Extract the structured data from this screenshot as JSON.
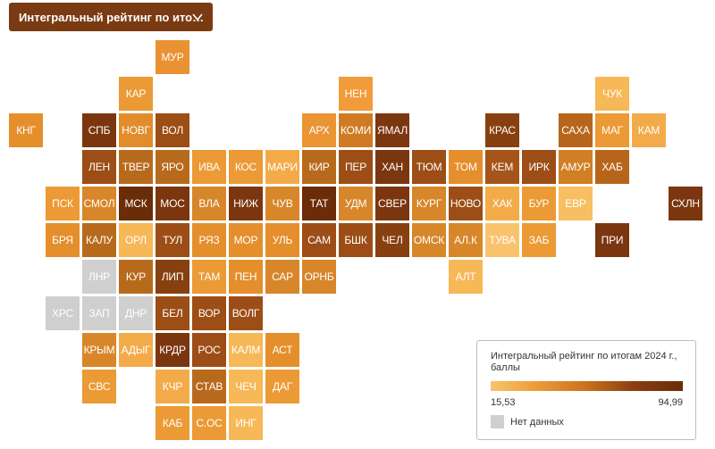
{
  "dropdown": {
    "label": "Интегральный рейтинг по ито…"
  },
  "colors": {
    "dark": "#7a3b12",
    "no_data": "#cfcfcf",
    "scale_min": "#f9c36e",
    "scale_max": "#6b2c08"
  },
  "legend": {
    "title": "Интегральный рейтинг по итогам 2024 г., баллы",
    "min": "15,53",
    "max": "94,99",
    "no_data_label": "Нет данных"
  },
  "regions": [
    {
      "label": "МУР",
      "row": 0,
      "col": 4,
      "color": "#ea9133"
    },
    {
      "label": "КАР",
      "row": 1,
      "col": 3,
      "color": "#eb9a35"
    },
    {
      "label": "НЕН",
      "row": 1,
      "col": 9,
      "color": "#f29b3a"
    },
    {
      "label": "ЧУК",
      "row": 1,
      "col": 16,
      "color": "#f7b858"
    },
    {
      "label": "КНГ",
      "row": 2,
      "col": 0,
      "color": "#e48f2c"
    },
    {
      "label": "СПБ",
      "row": 2,
      "col": 2,
      "color": "#7b3610"
    },
    {
      "label": "НОВГ",
      "row": 2,
      "col": 3,
      "color": "#e18d2c"
    },
    {
      "label": "ВОЛ",
      "row": 2,
      "col": 4,
      "color": "#9c4e16"
    },
    {
      "label": "АРХ",
      "row": 2,
      "col": 8,
      "color": "#ea9433"
    },
    {
      "label": "КОМИ",
      "row": 2,
      "col": 9,
      "color": "#cf7b23"
    },
    {
      "label": "ЯМАЛ",
      "row": 2,
      "col": 10,
      "color": "#7c3610"
    },
    {
      "label": "КРАС",
      "row": 2,
      "col": 13,
      "color": "#87400f"
    },
    {
      "label": "САХА",
      "row": 2,
      "col": 15,
      "color": "#b8651c"
    },
    {
      "label": "МАГ",
      "row": 2,
      "col": 16,
      "color": "#eb9a35"
    },
    {
      "label": "КАМ",
      "row": 2,
      "col": 17,
      "color": "#f3ab4a"
    },
    {
      "label": "ЛЕН",
      "row": 3,
      "col": 2,
      "color": "#9c4e16"
    },
    {
      "label": "ТВЕР",
      "row": 3,
      "col": 3,
      "color": "#b86a1c"
    },
    {
      "label": "ЯРО",
      "row": 3,
      "col": 4,
      "color": "#b86a1c"
    },
    {
      "label": "ИВА",
      "row": 3,
      "col": 5,
      "color": "#eb9a35"
    },
    {
      "label": "КОС",
      "row": 3,
      "col": 6,
      "color": "#eb9a35"
    },
    {
      "label": "МАРИ",
      "row": 3,
      "col": 7,
      "color": "#f3ab4a"
    },
    {
      "label": "КИР",
      "row": 3,
      "col": 8,
      "color": "#b86a1c"
    },
    {
      "label": "ПЕР",
      "row": 3,
      "col": 9,
      "color": "#9c4e16"
    },
    {
      "label": "ХАН",
      "row": 3,
      "col": 10,
      "color": "#7b3610"
    },
    {
      "label": "ТЮМ",
      "row": 3,
      "col": 11,
      "color": "#9c4e16"
    },
    {
      "label": "ТОМ",
      "row": 3,
      "col": 12,
      "color": "#e48f2c"
    },
    {
      "label": "КЕМ",
      "row": 3,
      "col": 13,
      "color": "#a55519"
    },
    {
      "label": "ИРК",
      "row": 3,
      "col": 14,
      "color": "#9c4e16"
    },
    {
      "label": "АМУР",
      "row": 3,
      "col": 15,
      "color": "#d17f24"
    },
    {
      "label": "ХАБ",
      "row": 3,
      "col": 16,
      "color": "#b8651c"
    },
    {
      "label": "ПСК",
      "row": 4,
      "col": 1,
      "color": "#eb9a35"
    },
    {
      "label": "СМОЛ",
      "row": 4,
      "col": 2,
      "color": "#d8862a"
    },
    {
      "label": "МСК",
      "row": 4,
      "col": 3,
      "color": "#6b2c08"
    },
    {
      "label": "МОС",
      "row": 4,
      "col": 4,
      "color": "#7b3610"
    },
    {
      "label": "ВЛА",
      "row": 4,
      "col": 5,
      "color": "#d8862a"
    },
    {
      "label": "НИЖ",
      "row": 4,
      "col": 6,
      "color": "#7b3610"
    },
    {
      "label": "ЧУВ",
      "row": 4,
      "col": 7,
      "color": "#d8862a"
    },
    {
      "label": "ТАТ",
      "row": 4,
      "col": 8,
      "color": "#6b2c08"
    },
    {
      "label": "УДМ",
      "row": 4,
      "col": 9,
      "color": "#d8862a"
    },
    {
      "label": "СВЕР",
      "row": 4,
      "col": 10,
      "color": "#7b3610"
    },
    {
      "label": "КУРГ",
      "row": 4,
      "col": 11,
      "color": "#d8862a"
    },
    {
      "label": "НОВО",
      "row": 4,
      "col": 12,
      "color": "#9c4e16"
    },
    {
      "label": "ХАК",
      "row": 4,
      "col": 13,
      "color": "#f3ab4a"
    },
    {
      "label": "БУР",
      "row": 4,
      "col": 14,
      "color": "#eb9a35"
    },
    {
      "label": "ЕВР",
      "row": 4,
      "col": 15,
      "color": "#f7bf62"
    },
    {
      "label": "СХЛН",
      "row": 4,
      "col": 18,
      "color": "#7b3610"
    },
    {
      "label": "БРЯ",
      "row": 5,
      "col": 1,
      "color": "#e48f2c"
    },
    {
      "label": "КАЛУ",
      "row": 5,
      "col": 2,
      "color": "#b86a1c"
    },
    {
      "label": "ОРЛ",
      "row": 5,
      "col": 3,
      "color": "#f7b858"
    },
    {
      "label": "ТУЛ",
      "row": 5,
      "col": 4,
      "color": "#9c4e16"
    },
    {
      "label": "РЯЗ",
      "row": 5,
      "col": 5,
      "color": "#e48f2c"
    },
    {
      "label": "МОР",
      "row": 5,
      "col": 6,
      "color": "#e48f2c"
    },
    {
      "label": "УЛЬ",
      "row": 5,
      "col": 7,
      "color": "#e48f2c"
    },
    {
      "label": "САМ",
      "row": 5,
      "col": 8,
      "color": "#9c4e16"
    },
    {
      "label": "БШК",
      "row": 5,
      "col": 9,
      "color": "#9c4e16"
    },
    {
      "label": "ЧЕЛ",
      "row": 5,
      "col": 10,
      "color": "#87400f"
    },
    {
      "label": "ОМСК",
      "row": 5,
      "col": 11,
      "color": "#d8862a"
    },
    {
      "label": "АЛ.К",
      "row": 5,
      "col": 12,
      "color": "#d8862a"
    },
    {
      "label": "ТУВА",
      "row": 5,
      "col": 13,
      "color": "#f9c36e"
    },
    {
      "label": "ЗАБ",
      "row": 5,
      "col": 14,
      "color": "#eb9a35"
    },
    {
      "label": "ПРИ",
      "row": 5,
      "col": 16,
      "color": "#7b3610"
    },
    {
      "label": "ЛНР",
      "row": 6,
      "col": 2,
      "color": "#cfcfcf"
    },
    {
      "label": "КУР",
      "row": 6,
      "col": 3,
      "color": "#b86a1c"
    },
    {
      "label": "ЛИП",
      "row": 6,
      "col": 4,
      "color": "#87400f"
    },
    {
      "label": "ТАМ",
      "row": 6,
      "col": 5,
      "color": "#eb9a35"
    },
    {
      "label": "ПЕН",
      "row": 6,
      "col": 6,
      "color": "#e48f2c"
    },
    {
      "label": "САР",
      "row": 6,
      "col": 7,
      "color": "#d8862a"
    },
    {
      "label": "ОРНБ",
      "row": 6,
      "col": 8,
      "color": "#d8862a"
    },
    {
      "label": "АЛТ",
      "row": 6,
      "col": 12,
      "color": "#f7b858"
    },
    {
      "label": "ХРС",
      "row": 7,
      "col": 1,
      "color": "#cfcfcf"
    },
    {
      "label": "ЗАП",
      "row": 7,
      "col": 2,
      "color": "#cfcfcf"
    },
    {
      "label": "ДНР",
      "row": 7,
      "col": 3,
      "color": "#cfcfcf"
    },
    {
      "label": "БЕЛ",
      "row": 7,
      "col": 4,
      "color": "#9c4e16"
    },
    {
      "label": "ВОР",
      "row": 7,
      "col": 5,
      "color": "#9c4e16"
    },
    {
      "label": "ВОЛГ",
      "row": 7,
      "col": 6,
      "color": "#9c4e16"
    },
    {
      "label": "КРЫМ",
      "row": 8,
      "col": 2,
      "color": "#d8862a"
    },
    {
      "label": "АДЫГ",
      "row": 8,
      "col": 3,
      "color": "#f3ab4a"
    },
    {
      "label": "КРДР",
      "row": 8,
      "col": 4,
      "color": "#7b3610"
    },
    {
      "label": "РОС",
      "row": 8,
      "col": 5,
      "color": "#9c4e16"
    },
    {
      "label": "КАЛМ",
      "row": 8,
      "col": 6,
      "color": "#f7b858"
    },
    {
      "label": "АСТ",
      "row": 8,
      "col": 7,
      "color": "#e48f2c"
    },
    {
      "label": "СВС",
      "row": 9,
      "col": 2,
      "color": "#eb9a35"
    },
    {
      "label": "КЧР",
      "row": 9,
      "col": 4,
      "color": "#f3ab4a"
    },
    {
      "label": "СТАВ",
      "row": 9,
      "col": 5,
      "color": "#b86a1c"
    },
    {
      "label": "ЧЕЧ",
      "row": 9,
      "col": 6,
      "color": "#f7b858"
    },
    {
      "label": "ДАГ",
      "row": 9,
      "col": 7,
      "color": "#eb9a35"
    },
    {
      "label": "КАБ",
      "row": 10,
      "col": 4,
      "color": "#eb9a35"
    },
    {
      "label": "С.ОС",
      "row": 10,
      "col": 5,
      "color": "#eb9a35"
    },
    {
      "label": "ИНГ",
      "row": 10,
      "col": 6,
      "color": "#f7b858"
    }
  ]
}
